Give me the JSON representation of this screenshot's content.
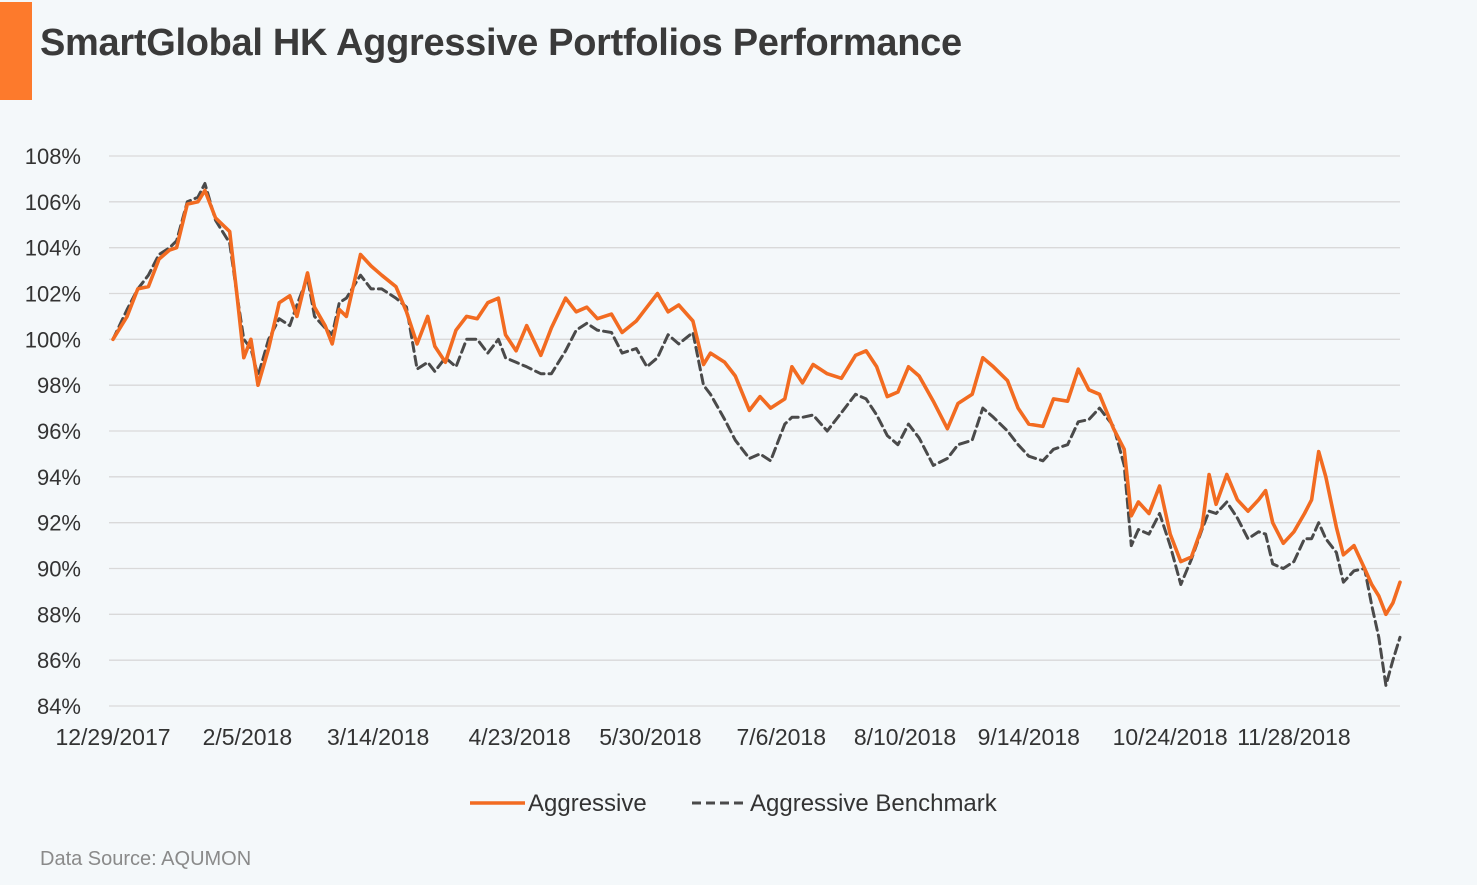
{
  "title": "SmartGlobal HK Aggressive Portfolios Performance",
  "source": "Data Source: AQUMON",
  "colors": {
    "accent": "#fd7a2c",
    "aggressive": "#f26b21",
    "benchmark": "#4a4a4a",
    "grid": "#d9d9d9",
    "text": "#333333"
  },
  "chart_data": {
    "type": "line",
    "title": "SmartGlobal HK Aggressive Portfolios Performance",
    "xlabel": "",
    "ylabel": "",
    "ylim": [
      84,
      108
    ],
    "y_ticks": [
      "84%",
      "86%",
      "88%",
      "90%",
      "92%",
      "94%",
      "96%",
      "98%",
      "100%",
      "102%",
      "104%",
      "106%",
      "108%"
    ],
    "y_tick_values": [
      84,
      86,
      88,
      90,
      92,
      94,
      96,
      98,
      100,
      102,
      104,
      106,
      108
    ],
    "x_range": [
      "2017-12-29",
      "2018-12-28"
    ],
    "x_ticks": [
      "12/29/2017",
      "2/5/2018",
      "3/14/2018",
      "4/23/2018",
      "5/30/2018",
      "7/6/2018",
      "8/10/2018",
      "9/14/2018",
      "10/24/2018",
      "11/28/2018"
    ],
    "x_tick_dates": [
      "2017-12-29",
      "2018-02-05",
      "2018-03-14",
      "2018-04-23",
      "2018-05-30",
      "2018-07-06",
      "2018-08-10",
      "2018-09-14",
      "2018-10-24",
      "2018-11-28"
    ],
    "legend_position": "bottom",
    "grid": true,
    "series": [
      {
        "name": "Aggressive",
        "style": "solid",
        "points": [
          [
            "2017-12-29",
            100.0
          ],
          [
            "2018-01-02",
            101.0
          ],
          [
            "2018-01-05",
            102.2
          ],
          [
            "2018-01-08",
            102.3
          ],
          [
            "2018-01-11",
            103.5
          ],
          [
            "2018-01-14",
            103.9
          ],
          [
            "2018-01-16",
            104.0
          ],
          [
            "2018-01-19",
            105.9
          ],
          [
            "2018-01-22",
            106.0
          ],
          [
            "2018-01-24",
            106.5
          ],
          [
            "2018-01-27",
            105.3
          ],
          [
            "2018-01-31",
            104.7
          ],
          [
            "2018-02-02",
            102.0
          ],
          [
            "2018-02-04",
            99.2
          ],
          [
            "2018-02-06",
            100.0
          ],
          [
            "2018-02-08",
            98.0
          ],
          [
            "2018-02-11",
            99.6
          ],
          [
            "2018-02-14",
            101.6
          ],
          [
            "2018-02-17",
            101.9
          ],
          [
            "2018-02-19",
            101.0
          ],
          [
            "2018-02-22",
            102.9
          ],
          [
            "2018-02-24",
            101.4
          ],
          [
            "2018-02-27",
            100.6
          ],
          [
            "2018-03-01",
            99.8
          ],
          [
            "2018-03-03",
            101.3
          ],
          [
            "2018-03-05",
            101.0
          ],
          [
            "2018-03-09",
            103.7
          ],
          [
            "2018-03-12",
            103.2
          ],
          [
            "2018-03-15",
            102.8
          ],
          [
            "2018-03-19",
            102.3
          ],
          [
            "2018-03-22",
            101.2
          ],
          [
            "2018-03-25",
            99.8
          ],
          [
            "2018-03-28",
            101.0
          ],
          [
            "2018-03-30",
            99.7
          ],
          [
            "2018-04-02",
            99.0
          ],
          [
            "2018-04-05",
            100.4
          ],
          [
            "2018-04-08",
            101.0
          ],
          [
            "2018-04-11",
            100.9
          ],
          [
            "2018-04-14",
            101.6
          ],
          [
            "2018-04-17",
            101.8
          ],
          [
            "2018-04-19",
            100.2
          ],
          [
            "2018-04-22",
            99.5
          ],
          [
            "2018-04-25",
            100.6
          ],
          [
            "2018-04-29",
            99.3
          ],
          [
            "2018-05-02",
            100.5
          ],
          [
            "2018-05-06",
            101.8
          ],
          [
            "2018-05-09",
            101.2
          ],
          [
            "2018-05-12",
            101.4
          ],
          [
            "2018-05-15",
            100.9
          ],
          [
            "2018-05-19",
            101.1
          ],
          [
            "2018-05-22",
            100.3
          ],
          [
            "2018-05-26",
            100.8
          ],
          [
            "2018-05-29",
            101.4
          ],
          [
            "2018-06-01",
            102.0
          ],
          [
            "2018-06-04",
            101.2
          ],
          [
            "2018-06-07",
            101.5
          ],
          [
            "2018-06-11",
            100.8
          ],
          [
            "2018-06-14",
            98.9
          ],
          [
            "2018-06-16",
            99.4
          ],
          [
            "2018-06-20",
            99.0
          ],
          [
            "2018-06-23",
            98.4
          ],
          [
            "2018-06-27",
            96.9
          ],
          [
            "2018-06-30",
            97.5
          ],
          [
            "2018-07-03",
            97.0
          ],
          [
            "2018-07-07",
            97.4
          ],
          [
            "2018-07-09",
            98.8
          ],
          [
            "2018-07-12",
            98.1
          ],
          [
            "2018-07-15",
            98.9
          ],
          [
            "2018-07-19",
            98.5
          ],
          [
            "2018-07-23",
            98.3
          ],
          [
            "2018-07-27",
            99.3
          ],
          [
            "2018-07-30",
            99.5
          ],
          [
            "2018-08-02",
            98.8
          ],
          [
            "2018-08-05",
            97.5
          ],
          [
            "2018-08-08",
            97.7
          ],
          [
            "2018-08-11",
            98.8
          ],
          [
            "2018-08-14",
            98.4
          ],
          [
            "2018-08-18",
            97.3
          ],
          [
            "2018-08-22",
            96.1
          ],
          [
            "2018-08-25",
            97.2
          ],
          [
            "2018-08-29",
            97.6
          ],
          [
            "2018-09-01",
            99.2
          ],
          [
            "2018-09-04",
            98.8
          ],
          [
            "2018-09-08",
            98.2
          ],
          [
            "2018-09-11",
            97.0
          ],
          [
            "2018-09-14",
            96.3
          ],
          [
            "2018-09-18",
            96.2
          ],
          [
            "2018-09-21",
            97.4
          ],
          [
            "2018-09-25",
            97.3
          ],
          [
            "2018-09-28",
            98.7
          ],
          [
            "2018-10-01",
            97.8
          ],
          [
            "2018-10-04",
            97.6
          ],
          [
            "2018-10-08",
            96.1
          ],
          [
            "2018-10-11",
            95.2
          ],
          [
            "2018-10-13",
            92.3
          ],
          [
            "2018-10-15",
            92.9
          ],
          [
            "2018-10-18",
            92.4
          ],
          [
            "2018-10-21",
            93.6
          ],
          [
            "2018-10-24",
            91.5
          ],
          [
            "2018-10-27",
            90.3
          ],
          [
            "2018-10-30",
            90.5
          ],
          [
            "2018-11-02",
            91.8
          ],
          [
            "2018-11-04",
            94.1
          ],
          [
            "2018-11-06",
            92.8
          ],
          [
            "2018-11-09",
            94.1
          ],
          [
            "2018-11-12",
            93.0
          ],
          [
            "2018-11-15",
            92.5
          ],
          [
            "2018-11-18",
            93.0
          ],
          [
            "2018-11-20",
            93.4
          ],
          [
            "2018-11-22",
            92.0
          ],
          [
            "2018-11-25",
            91.1
          ],
          [
            "2018-11-28",
            91.6
          ],
          [
            "2018-12-01",
            92.4
          ],
          [
            "2018-12-03",
            93.0
          ],
          [
            "2018-12-05",
            95.1
          ],
          [
            "2018-12-07",
            94.0
          ],
          [
            "2018-12-10",
            91.8
          ],
          [
            "2018-12-12",
            90.6
          ],
          [
            "2018-12-15",
            91.0
          ],
          [
            "2018-12-18",
            90.0
          ],
          [
            "2018-12-20",
            89.3
          ],
          [
            "2018-12-22",
            88.8
          ],
          [
            "2018-12-24",
            88.0
          ],
          [
            "2018-12-26",
            88.5
          ],
          [
            "2018-12-28",
            89.4
          ]
        ]
      },
      {
        "name": "Aggressive Benchmark",
        "style": "dashed",
        "points": [
          [
            "2017-12-29",
            100.0
          ],
          [
            "2018-01-02",
            101.3
          ],
          [
            "2018-01-05",
            102.2
          ],
          [
            "2018-01-08",
            102.8
          ],
          [
            "2018-01-11",
            103.7
          ],
          [
            "2018-01-14",
            104.0
          ],
          [
            "2018-01-16",
            104.3
          ],
          [
            "2018-01-19",
            106.0
          ],
          [
            "2018-01-22",
            106.2
          ],
          [
            "2018-01-24",
            106.8
          ],
          [
            "2018-01-27",
            105.2
          ],
          [
            "2018-01-31",
            104.2
          ],
          [
            "2018-02-02",
            102.0
          ],
          [
            "2018-02-04",
            100.0
          ],
          [
            "2018-02-06",
            99.6
          ],
          [
            "2018-02-08",
            98.4
          ],
          [
            "2018-02-11",
            100.0
          ],
          [
            "2018-02-14",
            100.9
          ],
          [
            "2018-02-17",
            100.6
          ],
          [
            "2018-02-19",
            101.5
          ],
          [
            "2018-02-22",
            102.7
          ],
          [
            "2018-02-24",
            101.0
          ],
          [
            "2018-02-27",
            100.5
          ],
          [
            "2018-03-01",
            100.2
          ],
          [
            "2018-03-03",
            101.6
          ],
          [
            "2018-03-05",
            101.8
          ],
          [
            "2018-03-09",
            102.8
          ],
          [
            "2018-03-12",
            102.2
          ],
          [
            "2018-03-15",
            102.2
          ],
          [
            "2018-03-19",
            101.8
          ],
          [
            "2018-03-22",
            101.4
          ],
          [
            "2018-03-25",
            98.7
          ],
          [
            "2018-03-28",
            99.0
          ],
          [
            "2018-03-30",
            98.6
          ],
          [
            "2018-04-02",
            99.2
          ],
          [
            "2018-04-05",
            98.8
          ],
          [
            "2018-04-08",
            100.0
          ],
          [
            "2018-04-11",
            100.0
          ],
          [
            "2018-04-14",
            99.4
          ],
          [
            "2018-04-17",
            100.0
          ],
          [
            "2018-04-19",
            99.2
          ],
          [
            "2018-04-22",
            99.0
          ],
          [
            "2018-04-25",
            98.8
          ],
          [
            "2018-04-29",
            98.5
          ],
          [
            "2018-05-02",
            98.5
          ],
          [
            "2018-05-06",
            99.5
          ],
          [
            "2018-05-09",
            100.4
          ],
          [
            "2018-05-12",
            100.7
          ],
          [
            "2018-05-15",
            100.4
          ],
          [
            "2018-05-19",
            100.3
          ],
          [
            "2018-05-22",
            99.4
          ],
          [
            "2018-05-26",
            99.6
          ],
          [
            "2018-05-29",
            98.8
          ],
          [
            "2018-06-01",
            99.2
          ],
          [
            "2018-06-04",
            100.2
          ],
          [
            "2018-06-07",
            99.8
          ],
          [
            "2018-06-11",
            100.3
          ],
          [
            "2018-06-14",
            98.0
          ],
          [
            "2018-06-16",
            97.6
          ],
          [
            "2018-06-20",
            96.5
          ],
          [
            "2018-06-23",
            95.6
          ],
          [
            "2018-06-27",
            94.8
          ],
          [
            "2018-06-30",
            95.0
          ],
          [
            "2018-07-03",
            94.7
          ],
          [
            "2018-07-07",
            96.3
          ],
          [
            "2018-07-09",
            96.6
          ],
          [
            "2018-07-12",
            96.6
          ],
          [
            "2018-07-15",
            96.7
          ],
          [
            "2018-07-19",
            96.0
          ],
          [
            "2018-07-23",
            96.8
          ],
          [
            "2018-07-27",
            97.6
          ],
          [
            "2018-07-30",
            97.4
          ],
          [
            "2018-08-02",
            96.7
          ],
          [
            "2018-08-05",
            95.8
          ],
          [
            "2018-08-08",
            95.4
          ],
          [
            "2018-08-11",
            96.3
          ],
          [
            "2018-08-14",
            95.7
          ],
          [
            "2018-08-18",
            94.5
          ],
          [
            "2018-08-22",
            94.8
          ],
          [
            "2018-08-25",
            95.4
          ],
          [
            "2018-08-29",
            95.6
          ],
          [
            "2018-09-01",
            97.0
          ],
          [
            "2018-09-04",
            96.6
          ],
          [
            "2018-09-08",
            96.0
          ],
          [
            "2018-09-11",
            95.4
          ],
          [
            "2018-09-14",
            94.9
          ],
          [
            "2018-09-18",
            94.7
          ],
          [
            "2018-09-21",
            95.2
          ],
          [
            "2018-09-25",
            95.4
          ],
          [
            "2018-09-28",
            96.4
          ],
          [
            "2018-10-01",
            96.5
          ],
          [
            "2018-10-04",
            97.0
          ],
          [
            "2018-10-08",
            96.2
          ],
          [
            "2018-10-11",
            94.5
          ],
          [
            "2018-10-13",
            91.0
          ],
          [
            "2018-10-15",
            91.7
          ],
          [
            "2018-10-18",
            91.5
          ],
          [
            "2018-10-21",
            92.4
          ],
          [
            "2018-10-24",
            91.0
          ],
          [
            "2018-10-27",
            89.3
          ],
          [
            "2018-10-30",
            90.4
          ],
          [
            "2018-11-02",
            91.7
          ],
          [
            "2018-11-04",
            92.5
          ],
          [
            "2018-11-06",
            92.4
          ],
          [
            "2018-11-09",
            92.9
          ],
          [
            "2018-11-12",
            92.2
          ],
          [
            "2018-11-15",
            91.3
          ],
          [
            "2018-11-18",
            91.6
          ],
          [
            "2018-11-20",
            91.5
          ],
          [
            "2018-11-22",
            90.2
          ],
          [
            "2018-11-25",
            90.0
          ],
          [
            "2018-11-28",
            90.3
          ],
          [
            "2018-12-01",
            91.3
          ],
          [
            "2018-12-03",
            91.3
          ],
          [
            "2018-12-05",
            92.0
          ],
          [
            "2018-12-07",
            91.3
          ],
          [
            "2018-12-10",
            90.7
          ],
          [
            "2018-12-12",
            89.4
          ],
          [
            "2018-12-15",
            89.9
          ],
          [
            "2018-12-18",
            90.0
          ],
          [
            "2018-12-20",
            88.4
          ],
          [
            "2018-12-22",
            87.0
          ],
          [
            "2018-12-24",
            84.9
          ],
          [
            "2018-12-26",
            86.0
          ],
          [
            "2018-12-28",
            87.0
          ]
        ]
      }
    ]
  }
}
